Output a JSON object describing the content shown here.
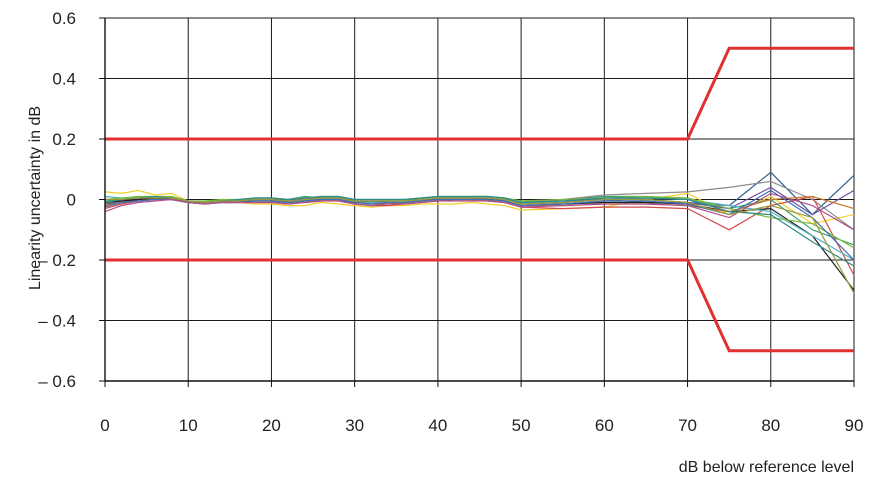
{
  "chart_data": {
    "type": "line",
    "title": "",
    "xlabel": "dB below reference level",
    "ylabel": "Linearity uncertainty in dB",
    "xlim": [
      0,
      90
    ],
    "ylim": [
      -0.6,
      0.6
    ],
    "grid": true,
    "x_ticks": [
      0,
      10,
      20,
      30,
      40,
      50,
      60,
      70,
      80,
      90
    ],
    "x_tick_labels": [
      "0",
      "10",
      "20",
      "30",
      "40",
      "50",
      "60",
      "70",
      "80",
      "90"
    ],
    "y_ticks": [
      0.6,
      0.4,
      0.2,
      0,
      -0.2,
      -0.4,
      -0.6
    ],
    "y_tick_labels": [
      "0.6",
      "0.4",
      "0.2",
      "0",
      "– 0.2",
      "– 0.4",
      "– 0.6"
    ],
    "tolerance_color": "#e03030",
    "tolerance_limits": [
      {
        "x": [
          0,
          70,
          75,
          90
        ],
        "y": [
          0.2,
          0.2,
          0.5,
          0.5
        ]
      },
      {
        "x": [
          0,
          70,
          75,
          90
        ],
        "y": [
          -0.2,
          -0.2,
          -0.5,
          -0.5
        ]
      }
    ],
    "x": [
      0,
      2,
      4,
      6,
      8,
      10,
      12,
      14,
      16,
      18,
      20,
      22,
      24,
      26,
      28,
      30,
      32,
      34,
      36,
      38,
      40,
      42,
      44,
      46,
      48,
      50,
      55,
      60,
      65,
      70,
      75,
      80,
      85,
      90
    ],
    "series": [
      {
        "color": "#f2d028",
        "values": [
          0.025,
          0.02,
          0.03,
          0.015,
          0.02,
          -0.005,
          -0.01,
          -0.005,
          -0.01,
          -0.015,
          -0.015,
          -0.02,
          -0.02,
          -0.01,
          -0.015,
          -0.02,
          -0.025,
          -0.02,
          -0.02,
          -0.015,
          -0.015,
          -0.015,
          -0.01,
          -0.015,
          -0.02,
          -0.035,
          -0.03,
          -0.025,
          0.0,
          0.02,
          -0.05,
          0.01,
          -0.08,
          -0.05
        ]
      },
      {
        "color": "#2f5f8f",
        "values": [
          -0.01,
          -0.005,
          0.0,
          0.005,
          0.0,
          -0.01,
          -0.01,
          -0.005,
          -0.005,
          0.0,
          0.0,
          -0.005,
          0.0,
          0.005,
          0.005,
          -0.005,
          -0.01,
          -0.005,
          -0.005,
          0.0,
          0.005,
          0.005,
          0.005,
          0.005,
          0.0,
          -0.01,
          -0.005,
          0.0,
          -0.01,
          -0.01,
          -0.02,
          0.09,
          -0.05,
          0.08
        ]
      },
      {
        "color": "#3aa06a",
        "values": [
          -0.005,
          0.0,
          0.01,
          0.0,
          0.01,
          -0.005,
          -0.01,
          0.0,
          -0.005,
          0.005,
          0.005,
          0.0,
          0.01,
          0.005,
          0.01,
          0.0,
          0.0,
          0.0,
          0.0,
          0.005,
          0.01,
          0.005,
          0.01,
          0.01,
          0.005,
          -0.005,
          0.0,
          0.01,
          0.01,
          0.0,
          -0.03,
          0.0,
          -0.1,
          -0.15
        ]
      },
      {
        "color": "#8c8c8c",
        "values": [
          -0.02,
          -0.01,
          0.0,
          0.0,
          0.005,
          -0.01,
          -0.01,
          -0.005,
          -0.005,
          0.0,
          0.0,
          -0.005,
          0.0,
          0.0,
          0.005,
          -0.005,
          -0.005,
          -0.005,
          -0.005,
          0.0,
          0.005,
          0.005,
          0.005,
          0.005,
          0.0,
          -0.01,
          0.0,
          0.015,
          0.02,
          0.025,
          0.04,
          0.06,
          0.0,
          -0.1
        ]
      },
      {
        "color": "#d24a4a",
        "values": [
          -0.03,
          -0.015,
          -0.005,
          0.0,
          0.005,
          -0.01,
          -0.015,
          -0.01,
          -0.01,
          -0.01,
          -0.01,
          -0.015,
          -0.01,
          -0.005,
          0.0,
          -0.015,
          -0.02,
          -0.02,
          -0.015,
          -0.01,
          -0.005,
          0.0,
          0.0,
          -0.005,
          -0.01,
          -0.025,
          -0.03,
          -0.025,
          -0.025,
          -0.03,
          -0.1,
          -0.02,
          0.01,
          -0.25
        ]
      },
      {
        "color": "#6a4f9c",
        "values": [
          -0.015,
          -0.01,
          0.0,
          0.005,
          0.005,
          -0.005,
          -0.01,
          -0.005,
          -0.005,
          0.0,
          0.0,
          -0.005,
          0.005,
          0.005,
          0.005,
          -0.005,
          -0.005,
          -0.005,
          -0.005,
          0.0,
          0.005,
          0.005,
          0.005,
          0.0,
          0.0,
          -0.015,
          -0.01,
          0.0,
          0.0,
          -0.01,
          -0.03,
          0.04,
          -0.05,
          0.03
        ]
      },
      {
        "color": "#1f1f1f",
        "values": [
          -0.01,
          -0.005,
          0.0,
          0.005,
          0.0,
          -0.01,
          -0.01,
          -0.005,
          -0.005,
          -0.005,
          -0.005,
          -0.01,
          -0.005,
          0.0,
          0.0,
          -0.01,
          -0.01,
          -0.01,
          -0.01,
          -0.005,
          0.0,
          0.0,
          0.0,
          0.0,
          -0.005,
          -0.02,
          -0.015,
          -0.01,
          -0.01,
          -0.015,
          -0.04,
          -0.03,
          -0.12,
          -0.3
        ]
      },
      {
        "color": "#4fb0c6",
        "values": [
          0.01,
          0.005,
          0.005,
          0.01,
          0.005,
          -0.005,
          -0.01,
          -0.005,
          -0.005,
          0.0,
          -0.005,
          -0.01,
          -0.005,
          0.0,
          0.005,
          -0.01,
          -0.01,
          -0.01,
          -0.005,
          0.0,
          0.005,
          0.005,
          0.005,
          0.005,
          0.0,
          -0.015,
          -0.01,
          0.0,
          0.005,
          0.0,
          -0.02,
          -0.04,
          -0.12,
          -0.2
        ]
      },
      {
        "color": "#c77a2a",
        "values": [
          -0.02,
          -0.01,
          -0.005,
          0.0,
          0.0,
          -0.01,
          -0.01,
          -0.01,
          -0.01,
          -0.005,
          -0.005,
          -0.01,
          -0.005,
          -0.005,
          0.0,
          -0.01,
          -0.015,
          -0.015,
          -0.01,
          -0.005,
          0.0,
          0.0,
          0.0,
          -0.005,
          -0.005,
          -0.02,
          -0.02,
          -0.015,
          -0.015,
          -0.02,
          -0.04,
          0.0,
          0.01,
          -0.03
        ]
      },
      {
        "color": "#7bb843",
        "values": [
          0.0,
          0.005,
          0.01,
          0.01,
          0.01,
          -0.005,
          -0.005,
          0.0,
          0.0,
          0.005,
          0.005,
          0.0,
          0.005,
          0.01,
          0.01,
          0.0,
          0.0,
          0.0,
          0.0,
          0.005,
          0.01,
          0.01,
          0.01,
          0.01,
          0.005,
          -0.005,
          0.0,
          0.005,
          0.01,
          0.005,
          -0.03,
          -0.06,
          -0.08,
          -0.16
        ]
      },
      {
        "color": "#3d6fb6",
        "values": [
          -0.025,
          -0.01,
          -0.005,
          0.0,
          0.0,
          -0.01,
          -0.015,
          -0.01,
          -0.01,
          -0.005,
          -0.005,
          -0.01,
          -0.005,
          0.0,
          0.0,
          -0.01,
          -0.015,
          -0.01,
          -0.01,
          -0.005,
          0.0,
          0.0,
          0.0,
          0.0,
          -0.005,
          -0.02,
          -0.015,
          -0.005,
          -0.005,
          -0.015,
          -0.05,
          0.03,
          -0.06,
          -0.2
        ]
      },
      {
        "color": "#b04f8e",
        "values": [
          -0.04,
          -0.02,
          -0.01,
          -0.005,
          0.0,
          -0.01,
          -0.015,
          -0.01,
          -0.01,
          -0.01,
          -0.01,
          -0.015,
          -0.01,
          -0.005,
          -0.005,
          -0.015,
          -0.02,
          -0.015,
          -0.015,
          -0.01,
          -0.005,
          -0.005,
          -0.005,
          -0.005,
          -0.01,
          -0.025,
          -0.02,
          -0.015,
          -0.015,
          -0.02,
          -0.06,
          0.02,
          -0.02,
          -0.1
        ]
      },
      {
        "color": "#2e8b8b",
        "values": [
          -0.01,
          0.0,
          0.005,
          0.01,
          0.005,
          -0.005,
          -0.01,
          -0.005,
          0.0,
          0.005,
          0.005,
          0.0,
          0.005,
          0.01,
          0.01,
          0.0,
          0.0,
          0.0,
          0.0,
          0.005,
          0.01,
          0.01,
          0.01,
          0.01,
          0.005,
          -0.01,
          -0.005,
          0.005,
          0.005,
          0.0,
          -0.04,
          -0.05,
          -0.14,
          -0.22
        ]
      },
      {
        "color": "#9a9a3a",
        "values": [
          0.0,
          0.0,
          0.005,
          0.005,
          0.005,
          -0.005,
          -0.01,
          -0.005,
          -0.005,
          0.0,
          0.0,
          -0.005,
          0.0,
          0.005,
          0.005,
          -0.005,
          -0.005,
          -0.005,
          -0.005,
          0.0,
          0.005,
          0.005,
          0.005,
          0.005,
          0.0,
          -0.015,
          -0.01,
          0.0,
          0.0,
          -0.01,
          -0.05,
          -0.02,
          -0.06,
          -0.31
        ]
      }
    ]
  }
}
